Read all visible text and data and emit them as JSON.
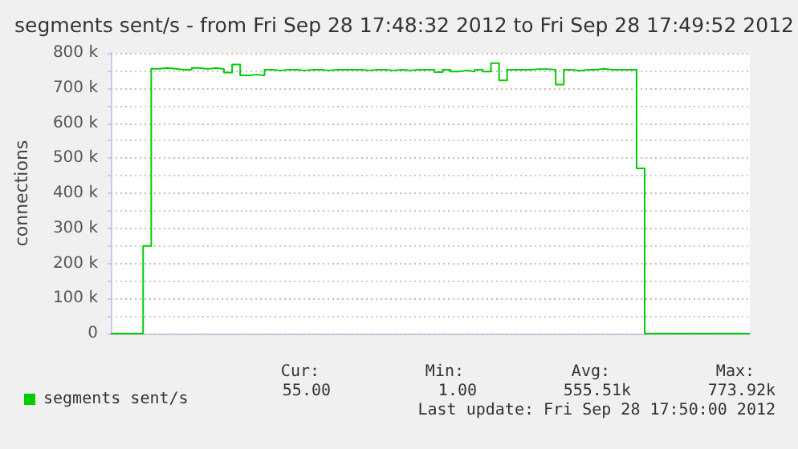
{
  "chart_data": {
    "type": "step",
    "title": "segments sent/s - from Fri Sep 28 17:48:32 2012 to Fri Sep 28 17:49:52 2012",
    "ylabel": "connections",
    "categories": [
      null,
      null,
      null,
      null,
      null,
      null,
      null,
      null,
      null,
      null,
      null,
      null,
      null,
      null,
      null,
      null,
      null,
      null,
      null,
      null,
      null,
      null,
      null,
      null,
      null,
      null,
      null,
      null,
      null,
      null,
      null,
      null,
      null,
      null,
      null,
      null,
      null,
      null,
      null,
      null,
      null,
      null,
      null,
      null,
      null,
      null,
      null,
      null,
      null,
      null,
      null,
      null,
      null,
      null,
      null,
      null,
      null,
      null,
      null,
      null,
      null,
      null,
      null,
      null,
      null,
      null,
      null,
      null,
      null,
      null,
      null,
      null,
      null,
      null,
      null,
      null,
      null,
      null,
      null,
      null
    ],
    "series": [
      {
        "name": "segments sent/s",
        "color": "#00cc00",
        "values": [
          0,
          0,
          0,
          0,
          250000,
          755000,
          757000,
          755000,
          752000,
          752000,
          757000,
          754000,
          757000,
          754000,
          744000,
          767000,
          736000,
          738000,
          736000,
          752000,
          750000,
          752000,
          752000,
          750000,
          752000,
          752000,
          750000,
          752000,
          752000,
          752000,
          752000,
          750000,
          752000,
          752000,
          750000,
          752000,
          750000,
          752000,
          752000,
          752000,
          745000,
          752000,
          747000,
          750000,
          747000,
          752000,
          747000,
          771000,
          722000,
          752000,
          752000,
          752000,
          754000,
          754000,
          752000,
          710000,
          752000,
          749000,
          752000,
          752000,
          755000,
          752000,
          752000,
          752000,
          752000,
          471000,
          0,
          0,
          0,
          0,
          0,
          0,
          0,
          0,
          0,
          0,
          0,
          0,
          0,
          0
        ]
      }
    ],
    "ylim": [
      0,
      800000
    ],
    "yticks": [
      {
        "value": 0,
        "label": "0"
      },
      {
        "value": 50000,
        "label": null
      },
      {
        "value": 100000,
        "label": "100 k"
      },
      {
        "value": 150000,
        "label": null
      },
      {
        "value": 200000,
        "label": "200 k"
      },
      {
        "value": 250000,
        "label": null
      },
      {
        "value": 300000,
        "label": "300 k"
      },
      {
        "value": 350000,
        "label": null
      },
      {
        "value": 400000,
        "label": "400 k"
      },
      {
        "value": 450000,
        "label": null
      },
      {
        "value": 500000,
        "label": "500 k"
      },
      {
        "value": 550000,
        "label": null
      },
      {
        "value": 600000,
        "label": "600 k"
      },
      {
        "value": 650000,
        "label": null
      },
      {
        "value": 700000,
        "label": "700 k"
      },
      {
        "value": 750000,
        "label": null
      },
      {
        "value": 800000,
        "label": "800 k"
      }
    ],
    "grid": "y",
    "legend": "bottom left",
    "tick_labels": "y",
    "annotations": [
      "Cur:",
      "Min:",
      "Avg:",
      "Max:",
      "55.00",
      "1.00",
      "555.51k",
      "773.92k",
      "Last update: Fri Sep 28 17:50:00 2012"
    ]
  }
}
